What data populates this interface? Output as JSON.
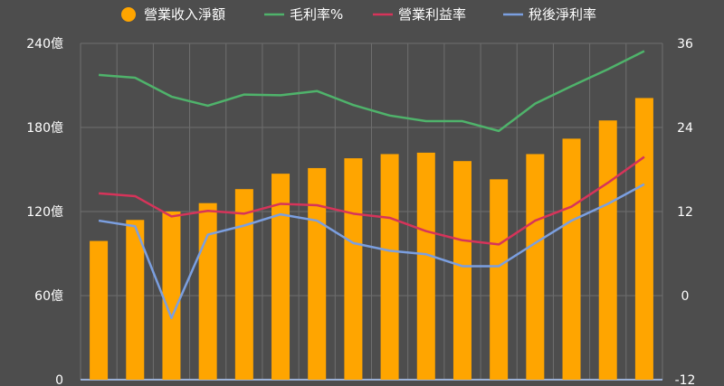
{
  "chart_data": {
    "type": "bar",
    "categories": [
      "",
      "",
      "",
      "",
      "",
      "",
      "",
      "",
      "",
      "",
      "",
      "",
      "",
      "",
      "",
      ""
    ],
    "series": [
      {
        "name": "營業收入淨額",
        "type": "bar",
        "axis": "left",
        "color": "#ffa500",
        "values": [
          99,
          114,
          120,
          126,
          136,
          147,
          151,
          158,
          161,
          162,
          156,
          143,
          161,
          172,
          185,
          201
        ]
      },
      {
        "name": "毛利率%",
        "type": "line",
        "axis": "right",
        "color": "#4fb36b",
        "values": [
          31.5,
          31.1,
          28.4,
          27.1,
          28.7,
          28.6,
          29.2,
          27.2,
          25.7,
          24.9,
          24.9,
          23.5,
          27.4,
          29.9,
          32.3,
          34.9
        ]
      },
      {
        "name": "營業利益率",
        "type": "line",
        "axis": "right",
        "color": "#d6345a",
        "values": [
          14.6,
          14.2,
          11.3,
          12.1,
          11.7,
          13.1,
          12.9,
          11.7,
          11.1,
          9.2,
          7.9,
          7.3,
          10.7,
          12.7,
          16.1,
          19.8
        ]
      },
      {
        "name": "稅後淨利率",
        "type": "line",
        "axis": "right",
        "color": "#7b9fe0",
        "values": [
          10.7,
          9.9,
          -3.2,
          8.7,
          10.0,
          11.6,
          10.7,
          7.5,
          6.4,
          5.9,
          4.2,
          4.2,
          7.5,
          10.7,
          13.1,
          15.9
        ]
      }
    ],
    "y_left": {
      "min": 0,
      "max": 240,
      "ticks": [
        0,
        60,
        120,
        180,
        240
      ],
      "tick_labels": [
        "0",
        "60億",
        "120億",
        "180億",
        "240億"
      ]
    },
    "y_right": {
      "min": -12,
      "max": 36,
      "ticks": [
        -12,
        0,
        12,
        24,
        36
      ],
      "tick_labels": [
        "-12",
        "0",
        "12",
        "24",
        "36"
      ]
    },
    "grid": true,
    "legend_position": "top"
  },
  "colors": {
    "background": "#4d4d4d",
    "grid": "#6e6e6e",
    "text": "#ffffff"
  }
}
